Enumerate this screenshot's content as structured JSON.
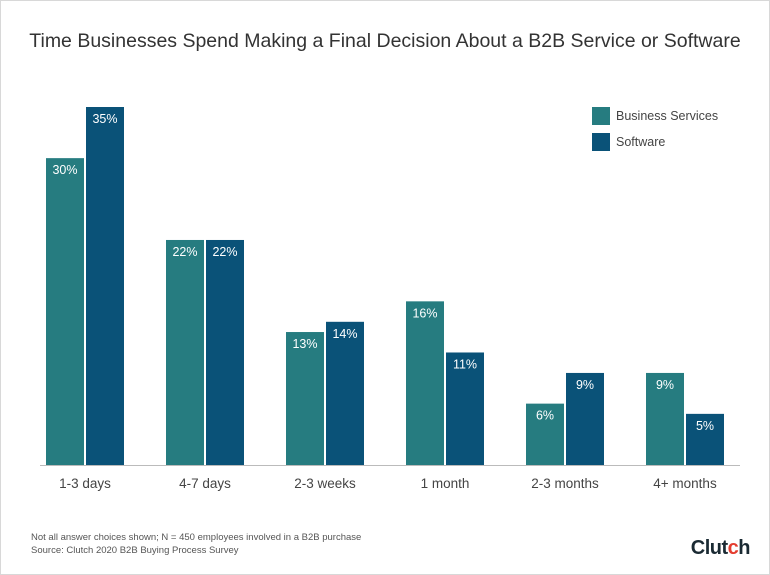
{
  "chart_data": {
    "type": "bar",
    "title": "Time Businesses Spend Making a Final Decision About a B2B Service or Software",
    "categories": [
      "1-3 days",
      "4-7 days",
      "2-3 weeks",
      "1 month",
      "2-3 months",
      "4+ months"
    ],
    "series": [
      {
        "name": "Business Services",
        "values": [
          30,
          22,
          13,
          16,
          6,
          9
        ],
        "color": "#267c80"
      },
      {
        "name": "Software",
        "values": [
          35,
          22,
          14,
          11,
          9,
          5
        ],
        "color": "#0a5278"
      }
    ],
    "value_suffix": "%",
    "ylim": [
      0,
      35
    ],
    "grid": false,
    "legend_position": "top-right"
  },
  "footer": {
    "note": "Not all answer choices shown; N = 450 employees involved in a B2B purchase",
    "source": "Source: Clutch 2020 B2B Buying Process Survey",
    "logo": "Clutch"
  }
}
